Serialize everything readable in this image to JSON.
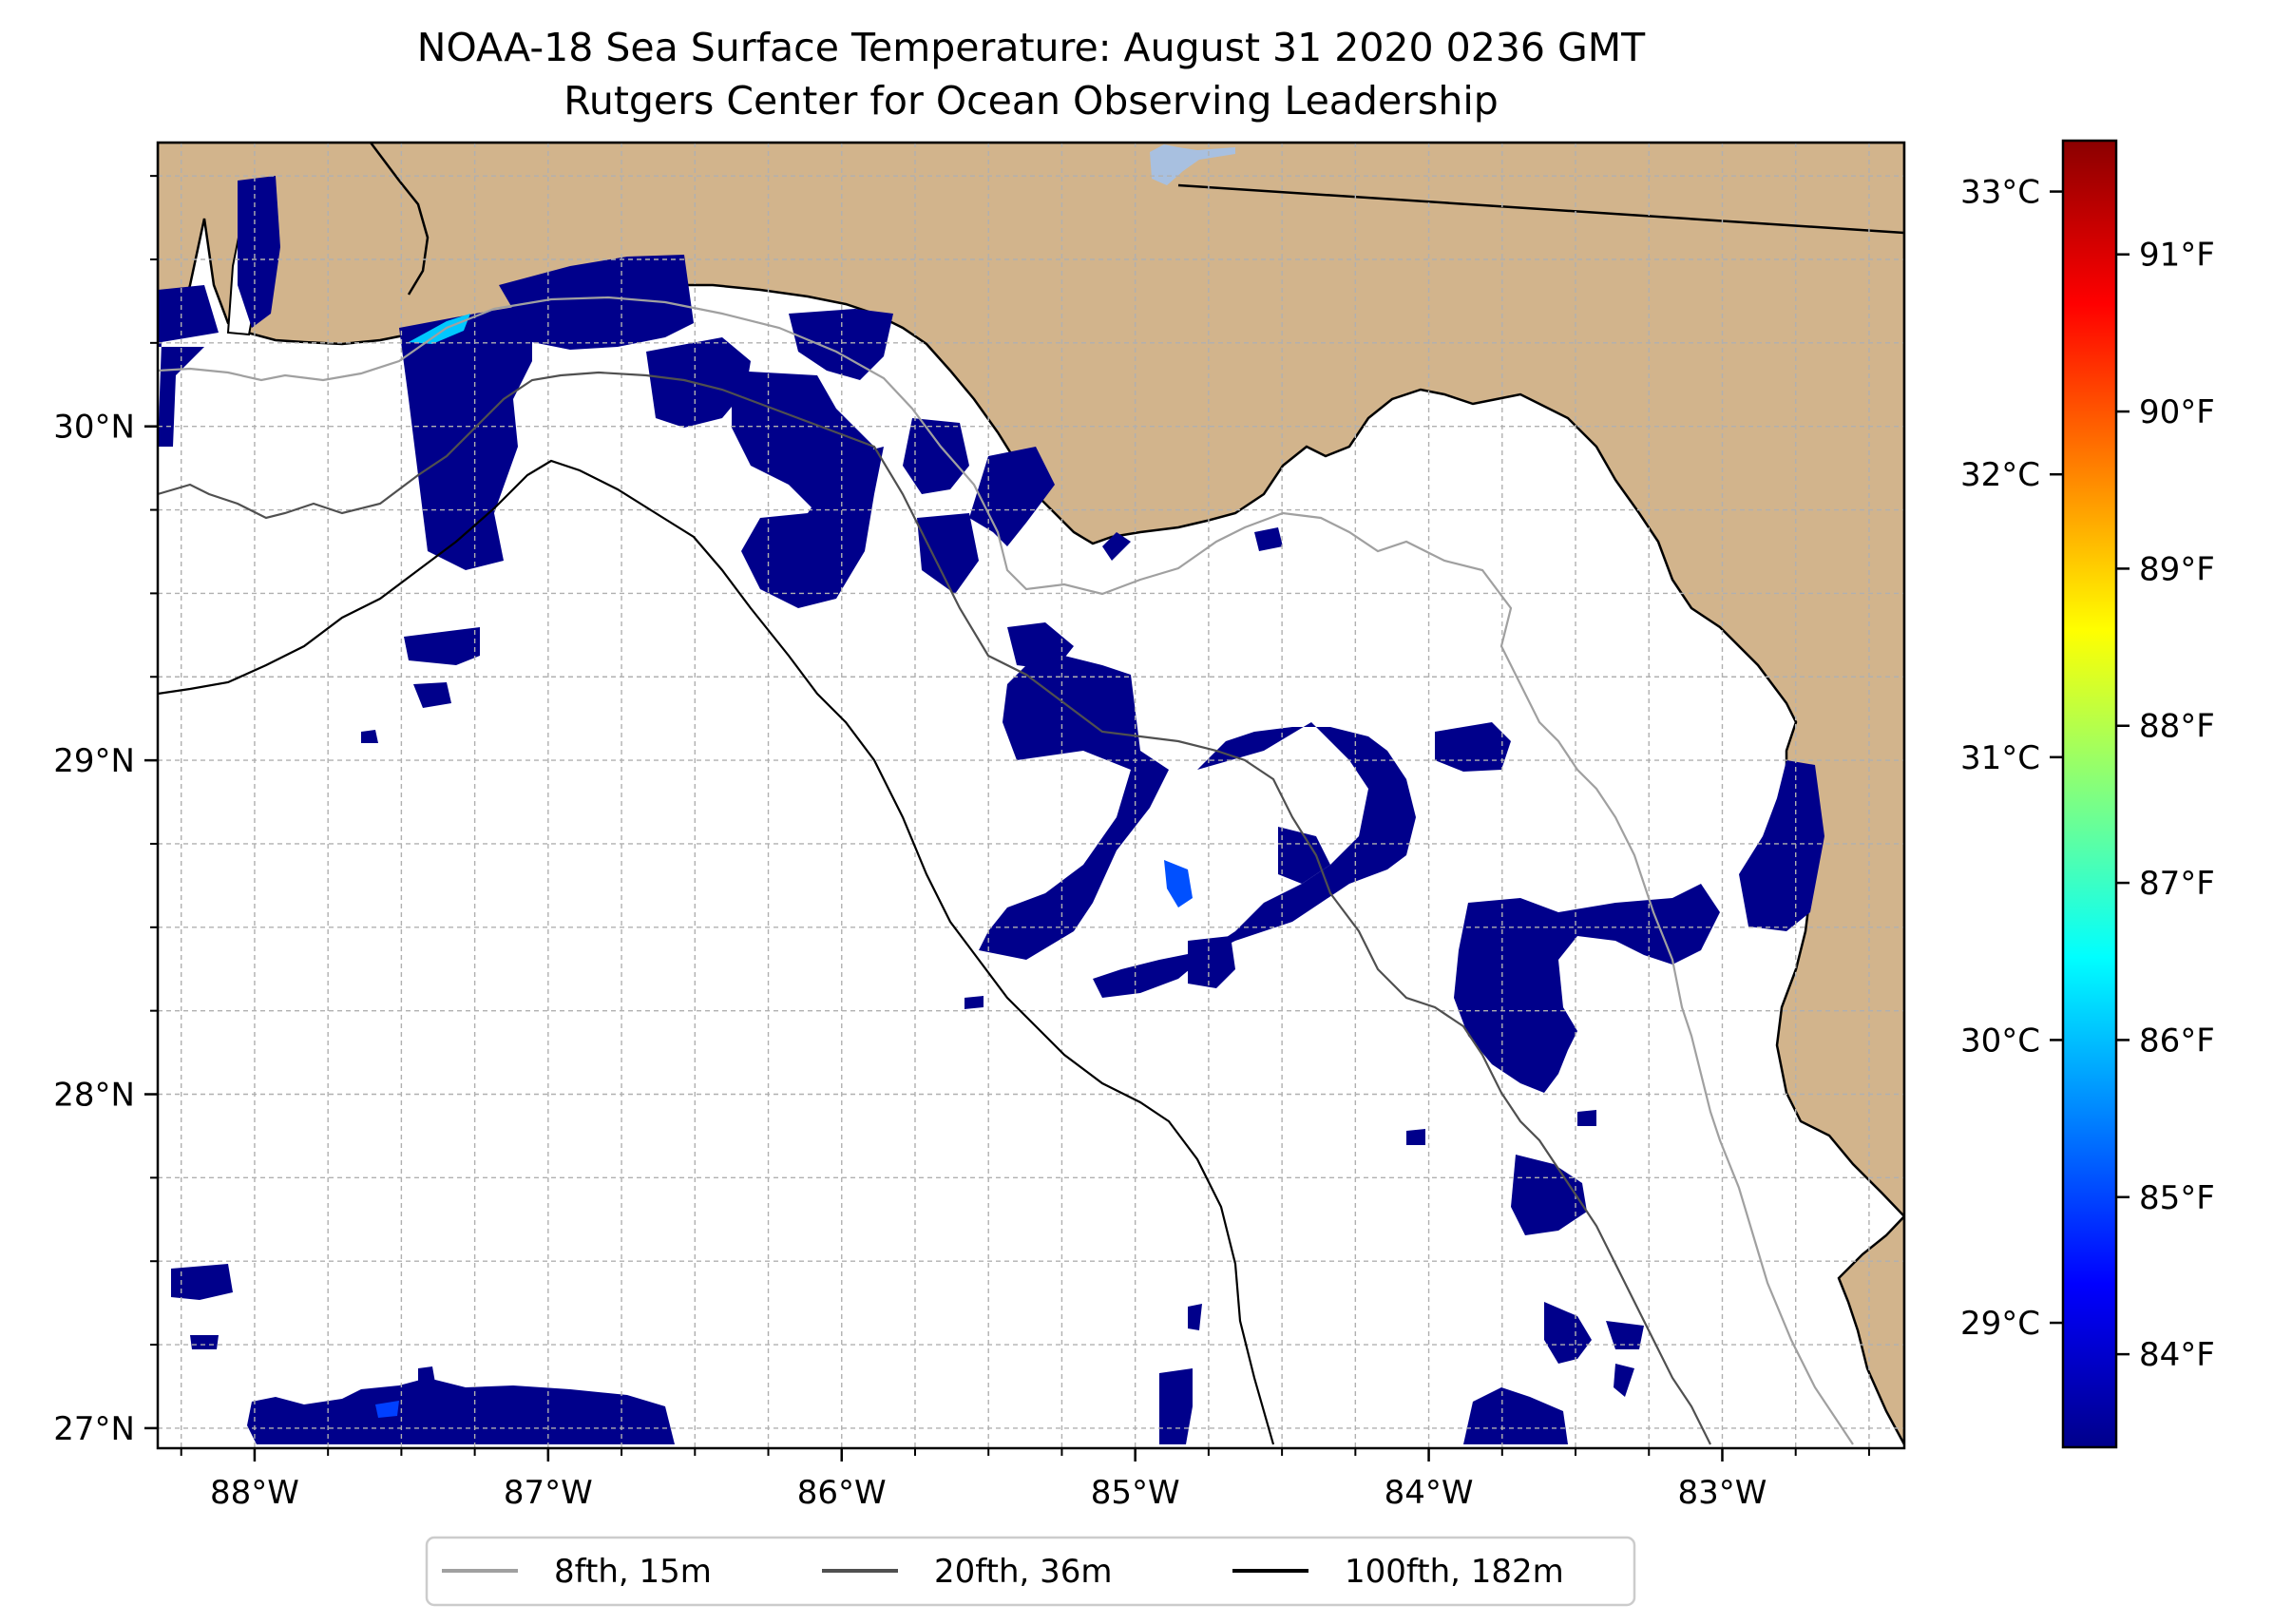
{
  "title": {
    "line1": "NOAA-18 Sea Surface Temperature: August 31 2020 0236 GMT",
    "line2": "Rutgers Center for Ocean Observing Leadership"
  },
  "map": {
    "extent": {
      "lon_min": -88.33,
      "lon_max": -82.38,
      "lat_min": 26.94,
      "lat_max": 30.85
    },
    "land_color": "#d2b48c",
    "ocean_color": "#ffffff",
    "cold_sst_color": "#00008b",
    "lon_ticks": [
      {
        "value": -88,
        "label": "88°W"
      },
      {
        "value": -87,
        "label": "87°W"
      },
      {
        "value": -86,
        "label": "86°W"
      },
      {
        "value": -85,
        "label": "85°W"
      },
      {
        "value": -84,
        "label": "84°W"
      },
      {
        "value": -83,
        "label": "83°W"
      }
    ],
    "lat_ticks": [
      {
        "value": 30,
        "label": "30°N"
      },
      {
        "value": 29,
        "label": "29°N"
      },
      {
        "value": 28,
        "label": "28°N"
      },
      {
        "value": 27,
        "label": "27°N"
      }
    ]
  },
  "colorbar": {
    "colormap": "jet",
    "colors": [
      "#00008b",
      "#0000ff",
      "#0080ff",
      "#00ffff",
      "#80ff80",
      "#ffff00",
      "#ff8000",
      "#ff0000",
      "#8b0000"
    ],
    "celsius_ticks": [
      {
        "value": 29,
        "label": "29°C"
      },
      {
        "value": 30,
        "label": "30°C"
      },
      {
        "value": 31,
        "label": "31°C"
      },
      {
        "value": 32,
        "label": "32°C"
      },
      {
        "value": 33,
        "label": "33°C"
      }
    ],
    "fahrenheit_ticks": [
      {
        "value": 84,
        "label": "84°F"
      },
      {
        "value": 85,
        "label": "85°F"
      },
      {
        "value": 86,
        "label": "86°F"
      },
      {
        "value": 87,
        "label": "87°F"
      },
      {
        "value": 88,
        "label": "88°F"
      },
      {
        "value": 89,
        "label": "89°F"
      },
      {
        "value": 90,
        "label": "90°F"
      },
      {
        "value": 91,
        "label": "91°F"
      }
    ]
  },
  "legend": {
    "entries": [
      {
        "label": "8fth, 15m",
        "color": "#a0a0a0"
      },
      {
        "label": "20fth, 36m",
        "color": "#505050"
      },
      {
        "label": "100fth, 182m",
        "color": "#000000"
      }
    ]
  }
}
